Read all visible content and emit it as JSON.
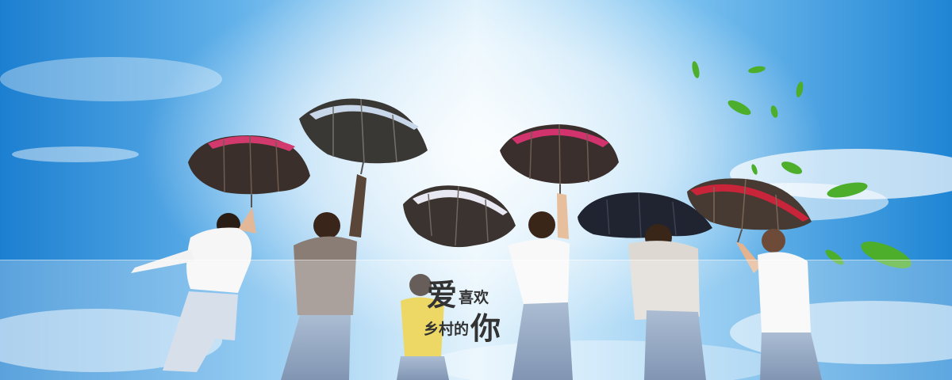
{
  "banner": {
    "slogan": {
      "line1_big": "爱",
      "line1_small": "喜欢",
      "line2_small": "乡村的",
      "line2_big": "你"
    }
  },
  "colors": {
    "sky_top": "#1c7fd0",
    "sky_mid": "#63b2ea",
    "sky_light": "#dff1fb",
    "umbrella_pink": "#d23a6e",
    "umbrella_red": "#c8243a",
    "umbrella_dark": "#1f2430",
    "leaf_green": "#4cae2b",
    "slogan_text": "#333333"
  },
  "icons": {
    "umbrellas": "umbrella-shape",
    "leaves": "leaf-shape"
  }
}
